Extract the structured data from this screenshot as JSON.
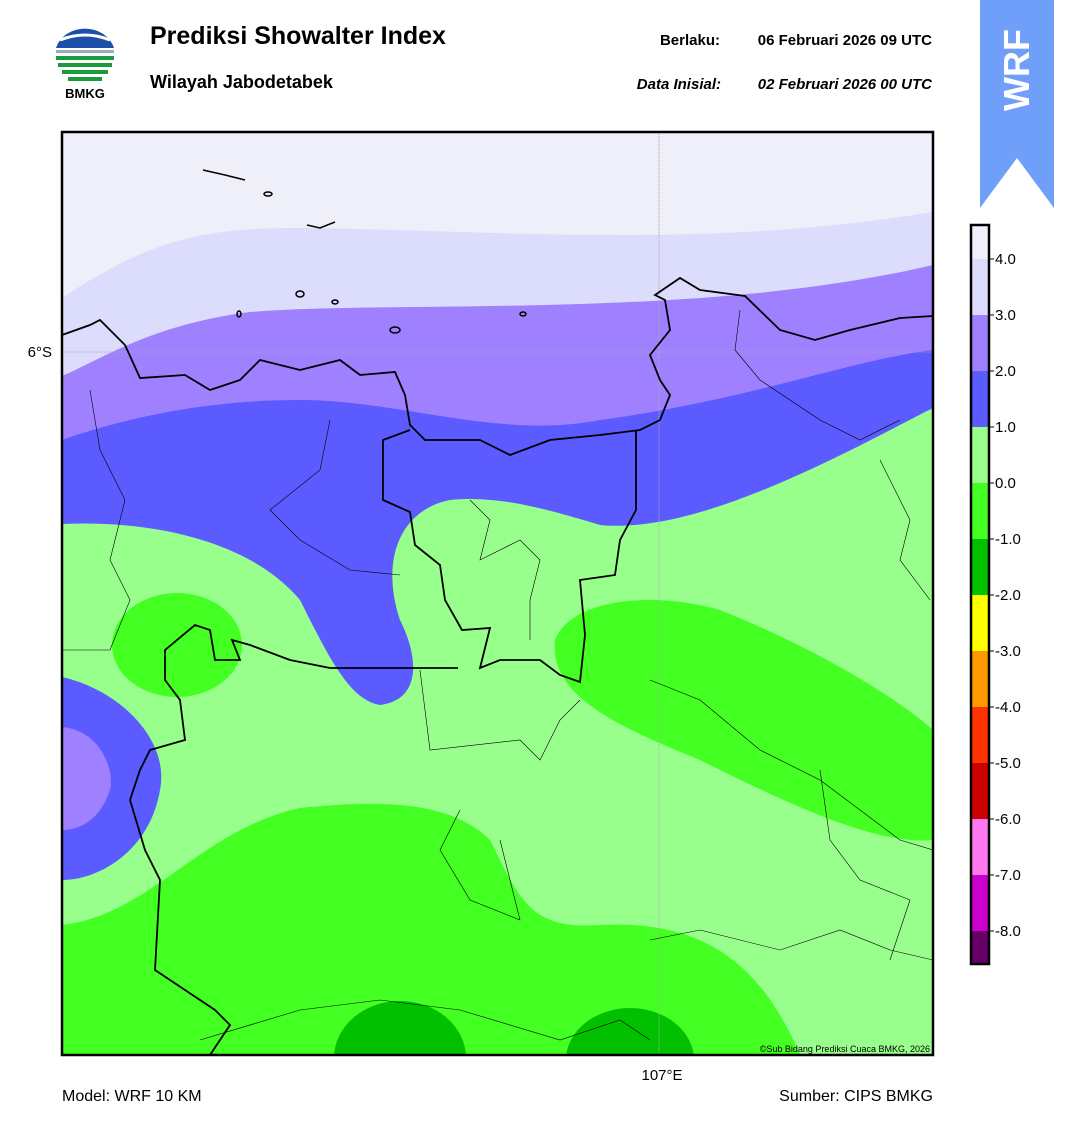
{
  "header": {
    "title": "Prediksi Showalter Index",
    "subtitle": "Wilayah Jabodetabek",
    "valid_label": "Berlaku:",
    "valid_time": "06 Februari 2026 09 UTC",
    "init_label": "Data Inisial:",
    "init_time": "02 Februari 2026 00 UTC",
    "logo_text": "BMKG",
    "badge": "WRF"
  },
  "map": {
    "lat_label": "6°S",
    "lon_label": "107°E",
    "credit": "©Sub Bidang Prediksi Cuaca BMKG, 2026"
  },
  "colorbar": {
    "ticks": [
      "4.0",
      "3.0",
      "2.0",
      "1.0",
      "0.0",
      "-1.0",
      "-2.0",
      "-3.0",
      "-4.0",
      "-5.0",
      "-6.0",
      "-7.0",
      "-8.0"
    ],
    "colors": [
      "#efeffa",
      "#dcdcfc",
      "#9f80ff",
      "#5b5bff",
      "#99ff8c",
      "#44ff22",
      "#00c000",
      "#ffff00",
      "#ff9900",
      "#ff3300",
      "#cc0000",
      "#ff77ee",
      "#cc00cc",
      "#660066"
    ]
  },
  "footer": {
    "model": "Model: WRF 10 KM",
    "source": "Sumber: CIPS BMKG"
  }
}
